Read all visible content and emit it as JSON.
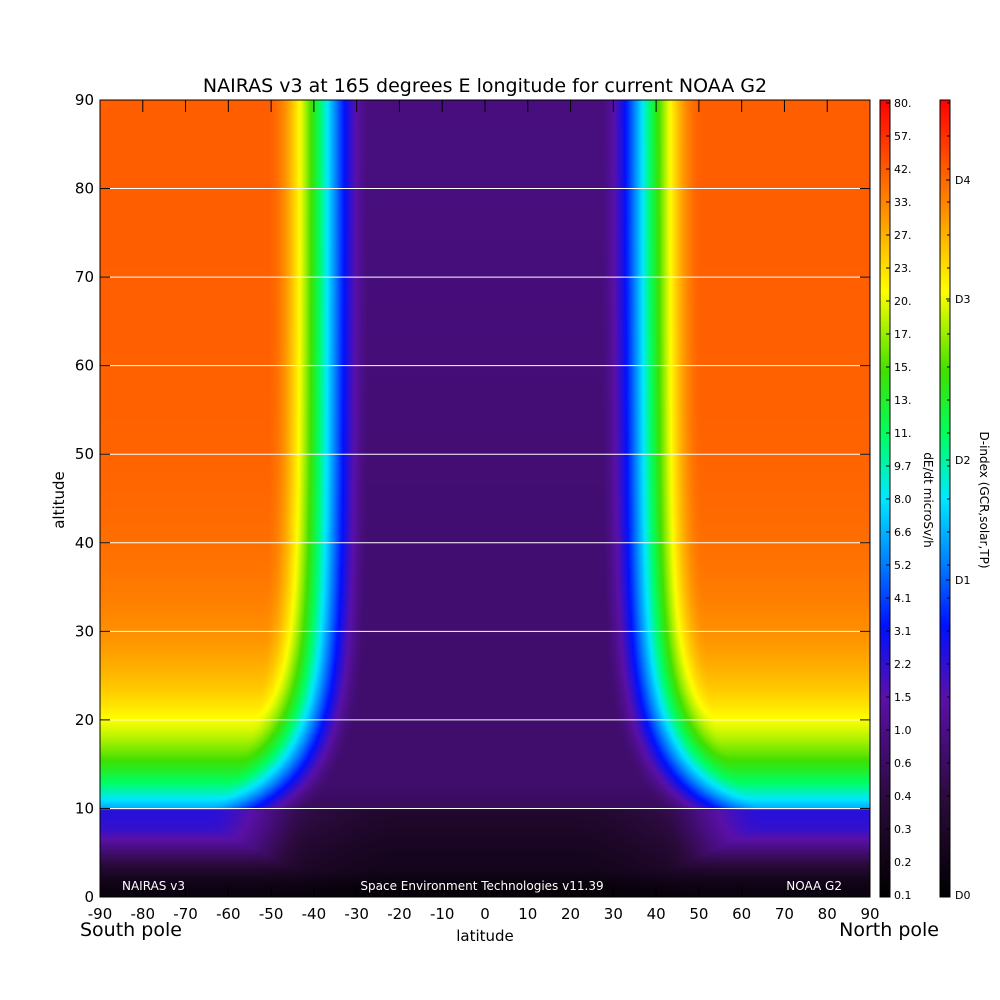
{
  "chart_data": {
    "type": "heatmap",
    "title": "NAIRAS v3 at 165 degrees E longitude for current NOAA G2",
    "xlabel": "latitude",
    "ylabel": "altitude",
    "x_ticks": [
      "-90",
      "-80",
      "-70",
      "-60",
      "-50",
      "-40",
      "-30",
      "-20",
      "-10",
      "0",
      "10",
      "20",
      "30",
      "40",
      "50",
      "60",
      "70",
      "80",
      "90"
    ],
    "y_ticks": [
      "0",
      "10",
      "20",
      "30",
      "40",
      "50",
      "60",
      "70",
      "80",
      "90"
    ],
    "xlim": [
      -90,
      90
    ],
    "ylim": [
      0,
      90
    ],
    "x_end_labels": {
      "left": "South pole",
      "right": "North pole"
    },
    "grid": "horizontal lines at 10,20,...,80",
    "footer": {
      "left": "NAIRAS v3",
      "center": "Space Environment Technologies v11.39",
      "right": "NOAA G2"
    },
    "colorbar_dose": {
      "label": "dE/dt microSv/h",
      "ticks": [
        "80.",
        "57.",
        "42.",
        "33.",
        "27.",
        "23.",
        "20.",
        "17.",
        "15.",
        "13.",
        "11.",
        "9.7",
        "8.0",
        "6.6",
        "5.2",
        "4.1",
        "3.1",
        "2.2",
        "1.5",
        "1.0",
        "0.6",
        "0.4",
        "0.3",
        "0.2",
        "0.1"
      ]
    },
    "colorbar_dindex": {
      "label": "D-index (GCR,solar,TP)",
      "ticks": [
        "D4",
        "D3",
        "D2",
        "D1",
        "D0"
      ]
    },
    "field_description_dose_microSv_per_h": {
      "cutoff_latitude_boundary_deg": 45,
      "polar_high_altitude_max": 33,
      "equatorial_min": 0.1
    }
  }
}
